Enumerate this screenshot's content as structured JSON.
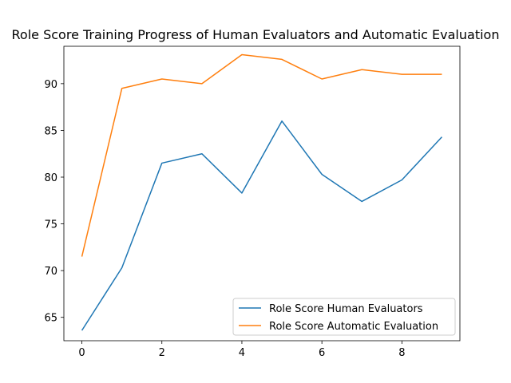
{
  "chart_data": {
    "type": "line",
    "title": "Role Score Training Progress of Human Evaluators and Automatic Evaluation",
    "xlabel": "",
    "ylabel": "",
    "x": [
      0,
      1,
      2,
      3,
      4,
      5,
      6,
      7,
      8,
      9
    ],
    "xlim": [
      -0.45,
      9.45
    ],
    "ylim": [
      62.5,
      94.0
    ],
    "xticks": [
      0,
      2,
      4,
      6,
      8
    ],
    "yticks": [
      65,
      70,
      75,
      80,
      85,
      90
    ],
    "grid": false,
    "legend_position": "lower-right",
    "series": [
      {
        "name": "Role Score Human Evaluators",
        "color": "#1f77b4",
        "values": [
          63.6,
          70.3,
          81.5,
          82.5,
          78.3,
          86.0,
          80.3,
          77.4,
          79.7,
          84.3
        ]
      },
      {
        "name": "Role Score Automatic Evaluation",
        "color": "#ff7f0e",
        "values": [
          71.5,
          89.5,
          90.5,
          90.0,
          93.1,
          92.6,
          90.5,
          91.5,
          91.0,
          91.0
        ]
      }
    ]
  }
}
